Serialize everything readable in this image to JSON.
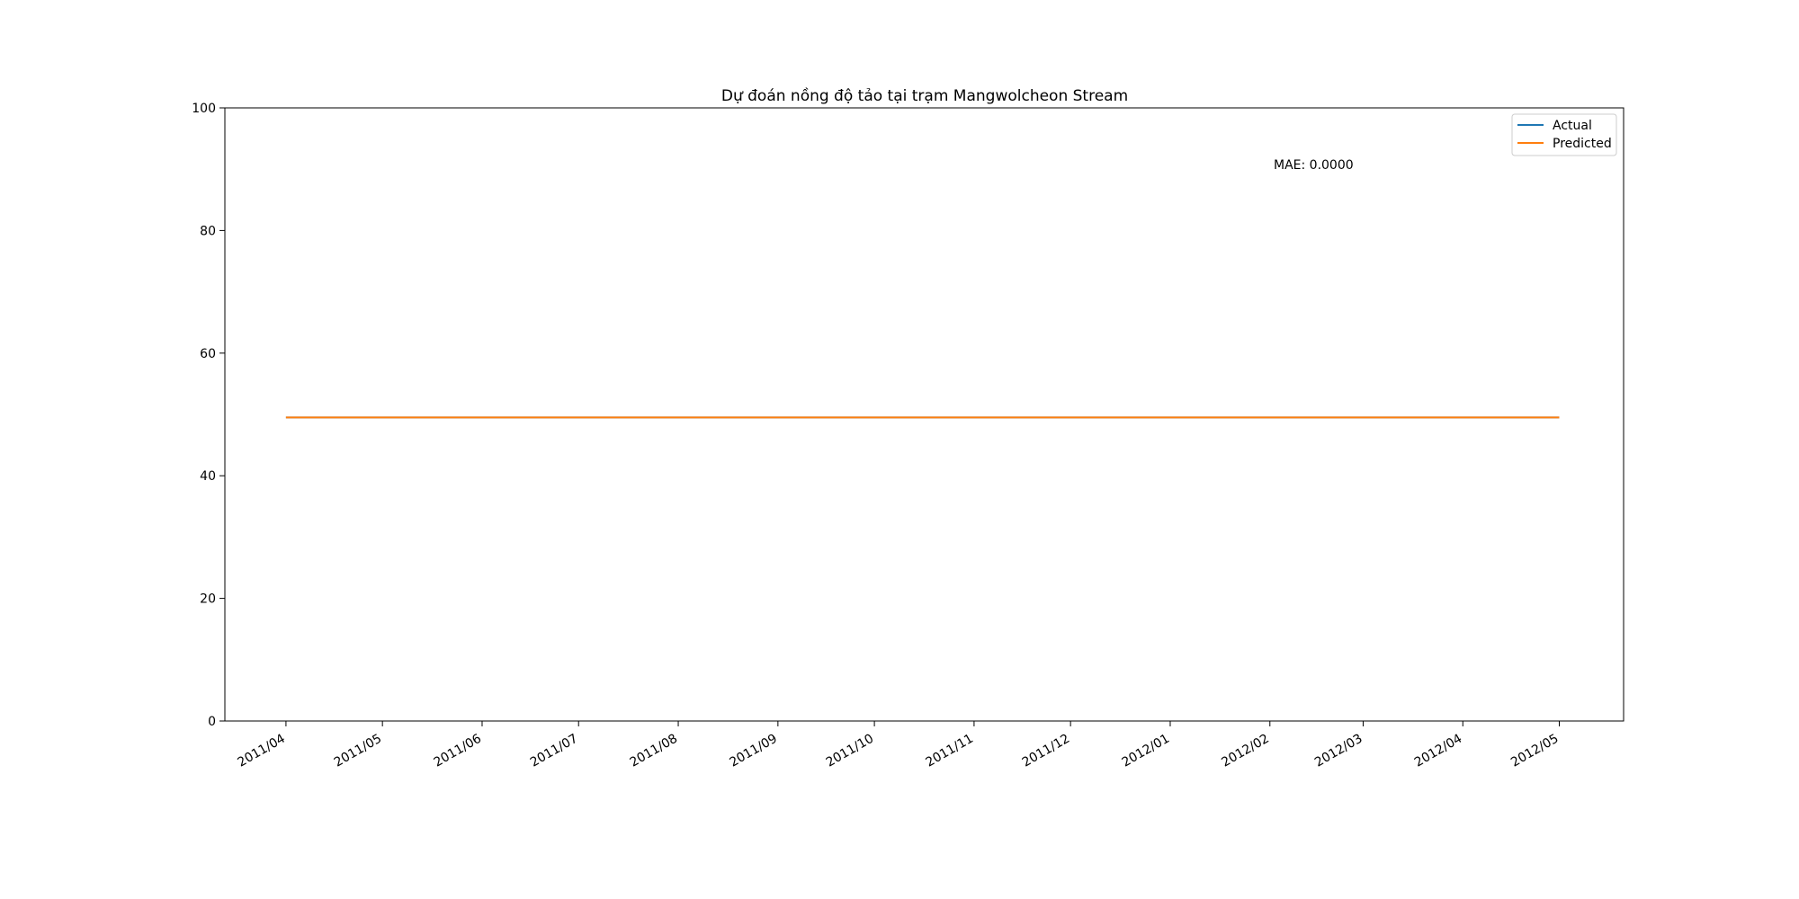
{
  "chart_data": {
    "type": "line",
    "title": "Dự đoán nồng độ tảo tại trạm Mangwolcheon Stream",
    "xlabel": "",
    "ylabel": "",
    "x_tick_labels": [
      "2011/04",
      "2011/05",
      "2011/06",
      "2011/07",
      "2011/08",
      "2011/09",
      "2011/10",
      "2011/11",
      "2011/12",
      "2012/01",
      "2012/02",
      "2012/03",
      "2012/04",
      "2012/05"
    ],
    "x": [
      "2011-04-01",
      "2012-05-01"
    ],
    "xlim": [
      "2011-03-13",
      "2012-05-21"
    ],
    "ylim": [
      0,
      100
    ],
    "y_ticks": [
      0,
      20,
      40,
      60,
      80,
      100
    ],
    "grid": false,
    "legend_position": "top-right",
    "series": [
      {
        "name": "Actual",
        "color": "#1f77b4",
        "values": [
          49.5,
          49.5
        ]
      },
      {
        "name": "Predicted",
        "color": "#ff7f0e",
        "values": [
          49.5,
          49.5
        ]
      }
    ],
    "annotation": "MAE: 0.0000"
  }
}
